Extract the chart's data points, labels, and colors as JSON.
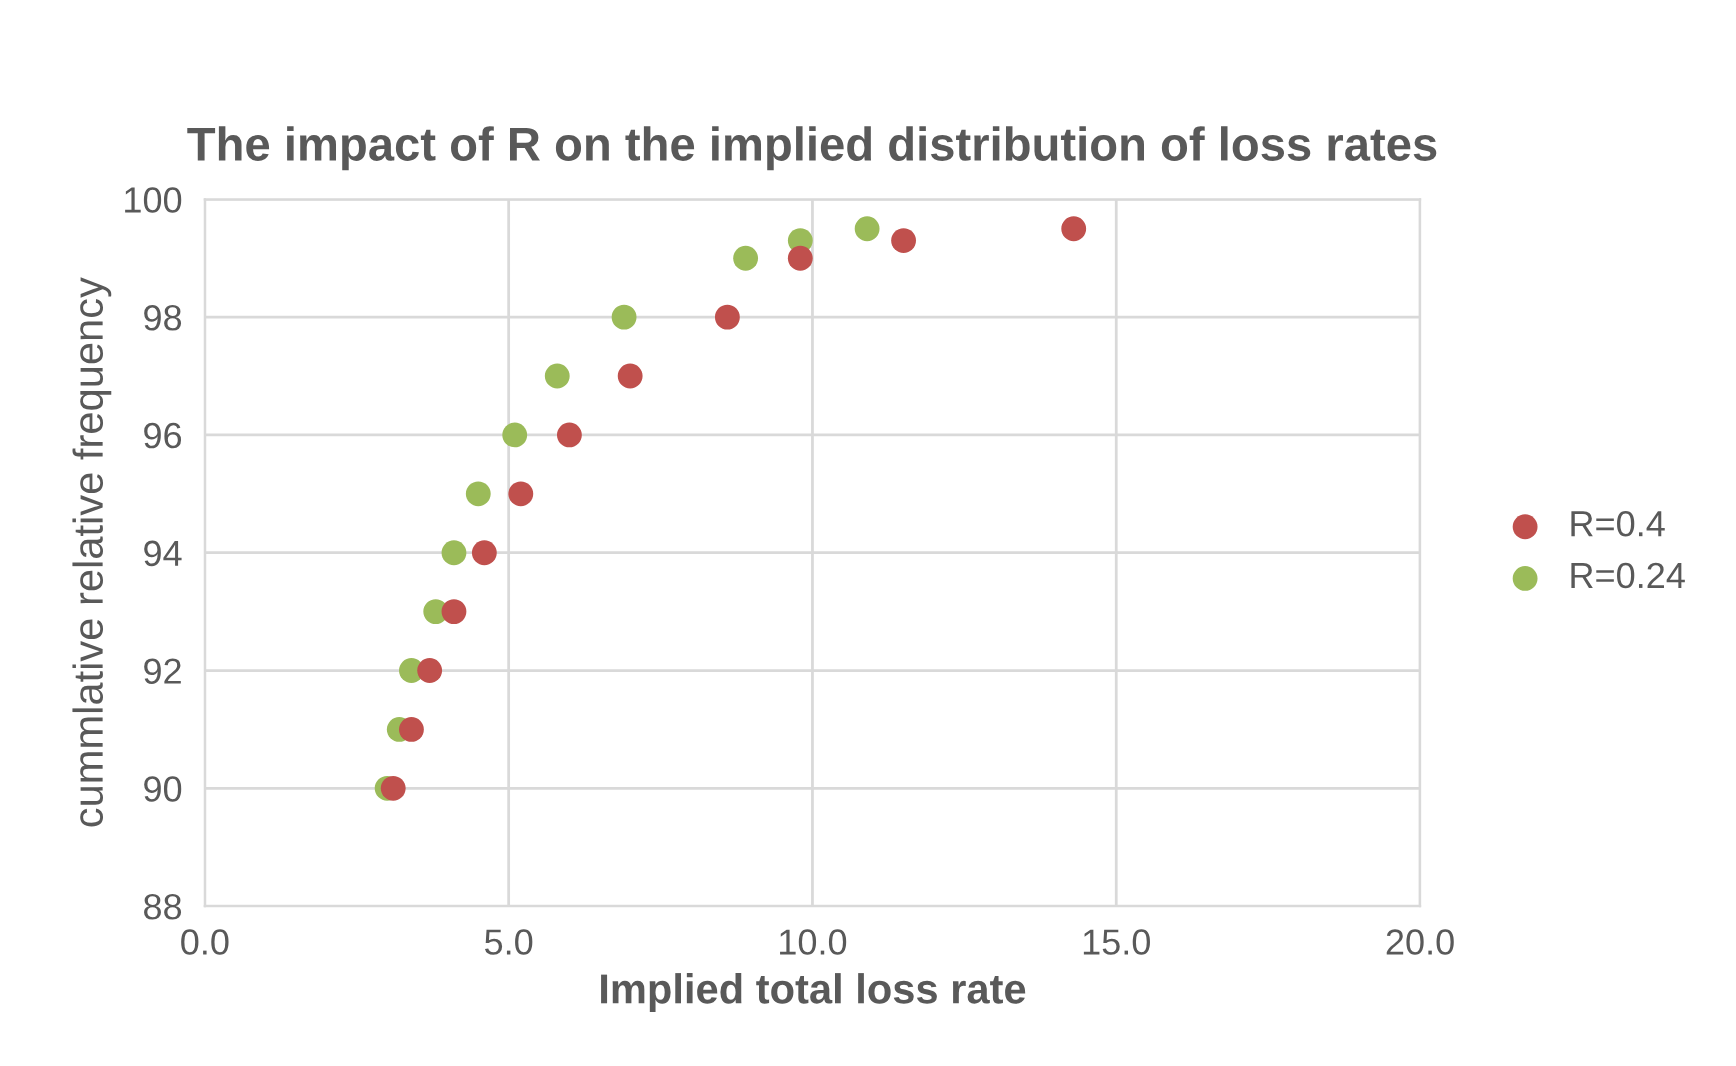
{
  "chart_data": {
    "type": "scatter",
    "title": "The impact of R on the implied distribution of loss rates",
    "xlabel": "Implied total loss rate",
    "ylabel": "cummlative relative frequency",
    "series": [
      {
        "name": "R=0.4",
        "color": "#c0504d",
        "x": [
          3.1,
          3.4,
          3.7,
          4.1,
          4.6,
          5.2,
          6.0,
          7.0,
          8.6,
          9.8,
          11.5,
          14.3
        ],
        "values": [
          90,
          91,
          92,
          93,
          94,
          95,
          96,
          97,
          98,
          99,
          99.3,
          99.5
        ]
      },
      {
        "name": "R=0.24",
        "color": "#9bbb59",
        "x": [
          3.0,
          3.2,
          3.4,
          3.8,
          4.1,
          4.5,
          5.1,
          5.8,
          6.9,
          8.9,
          9.8,
          10.9
        ],
        "values": [
          90,
          91,
          92,
          93,
          94,
          95,
          96,
          97,
          98,
          99,
          99.3,
          99.5
        ]
      }
    ],
    "xlim": [
      0,
      20
    ],
    "xticks": [
      {
        "value": 0,
        "label": "0.0"
      },
      {
        "value": 5,
        "label": "5.0"
      },
      {
        "value": 10,
        "label": "10.0"
      },
      {
        "value": 15,
        "label": "15.0"
      },
      {
        "value": 20,
        "label": "20.0"
      }
    ],
    "ylim": [
      88,
      100
    ],
    "yticks": [
      88,
      90,
      92,
      94,
      96,
      98,
      100
    ],
    "grid": true,
    "legend": "right",
    "marker": "circle"
  }
}
